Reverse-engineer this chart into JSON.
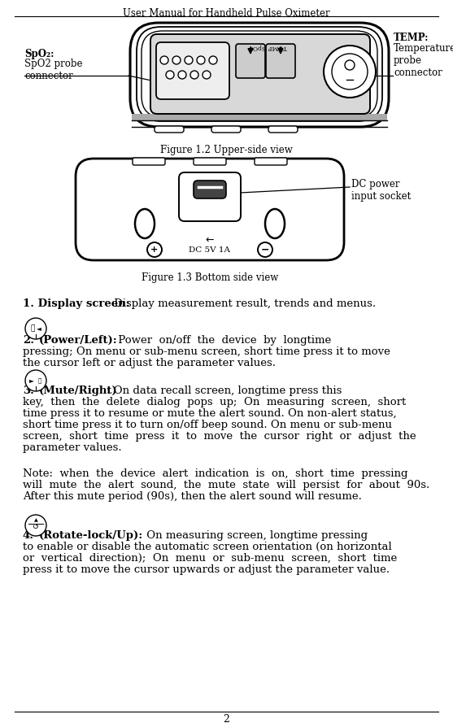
{
  "title": "User Manual for Handheld Pulse Oximeter",
  "page_number": "2",
  "fig_width": 5.57,
  "fig_height": 8.89,
  "dpi": 100,
  "bg_color": "#ffffff",
  "text_color": "#000000",
  "figure1_caption": "Figure 1.2 Upper-side view",
  "figure2_caption": "Figure 1.3 Bottom side view",
  "spo2_bold": "SpO₂:",
  "spo2_normal": "SpO2 probe\nconnector",
  "temp_bold": "TEMP:",
  "temp_normal": "Temperature\nprobe\nconnector",
  "dc_label": "DC power\ninput socket",
  "item1_bold": "1. Display screen:",
  "item1_rest": " Display measurement result, trends and menus.",
  "item2_rest": "  Power  on/off  the  device  by  longtime\npressing; On menu or sub-menu screen, short time press it to move\nthe cursor left or adjust the parameter values.",
  "item3_rest": ": On data recall screen, longtime press this\nkey,  then  the  delete  dialog  pops  up;  On  measuring  screen,  short\ntime press it to resume or mute the alert sound. On non-alert status,\nshort time press it to turn on/off beep sound. On menu or sub-menu\nscreen,  short  time  press  it  to  move  the  cursor  right  or  adjust  the\nparameter values.",
  "note_line1": "Note:  when  the  device  alert  indication  is  on,  short  time  pressing",
  "note_line2": "will  mute  the  alert  sound,  the  mute  state  will  persist  for  about  90s.",
  "note_line3": "After this mute period (90s), then the alert sound will resume.",
  "item4_rest": " On measuring screen, longtime pressing\nto enable or disable the automatic screen orientation (on horizontal\nor  vertical  direction);  On  menu  or  sub-menu  screen,  short  time\npress it to move the cursor upwards or adjust the parameter value."
}
